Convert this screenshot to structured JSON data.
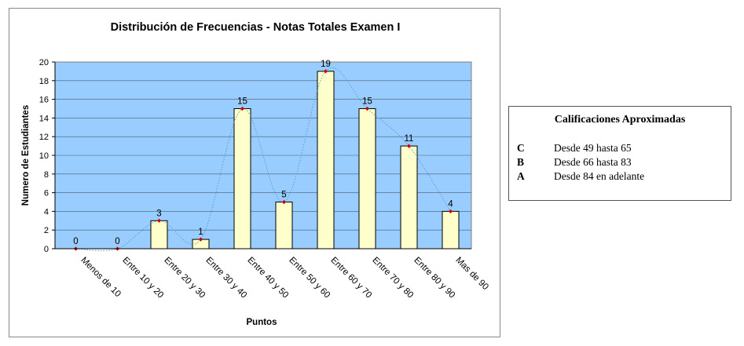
{
  "chart_data": {
    "type": "bar",
    "title": "Distribución de Frecuencias - Notas Totales Examen I",
    "xlabel": "Puntos",
    "ylabel": "Numero de Estudiantes",
    "categories": [
      "Menos de 10",
      "Entre 10 y 20",
      "Entre 20 y 30",
      "Entre 30 y 40",
      "Entre 40 y 50",
      "Entre 50 y 60",
      "Entre 60 y 70",
      "Entre 70 y 80",
      "Entre 80 y 90",
      "Mas de 90"
    ],
    "values": [
      0,
      0,
      3,
      1,
      15,
      5,
      19,
      15,
      11,
      4
    ],
    "ylim": [
      0,
      20
    ],
    "yticks": [
      0,
      2,
      4,
      6,
      8,
      10,
      12,
      14,
      16,
      18,
      20
    ],
    "grid": true,
    "legend": "none",
    "overlay": "smoothed dotted line with red markers through bar tops",
    "colors": {
      "plot_background": "#99CCFF",
      "bar_fill": "#FFFFCC",
      "bar_stroke": "#000000",
      "marker": "#CC0000",
      "line": "#5B9BD5"
    }
  },
  "side_legend": {
    "title": "Calificaciones Aproximadas",
    "rows": [
      {
        "grade": "C",
        "range": "Desde 49 hasta 65"
      },
      {
        "grade": "B",
        "range": "Desde 66 hasta 83"
      },
      {
        "grade": "A",
        "range": "Desde 84 en adelante"
      }
    ]
  }
}
